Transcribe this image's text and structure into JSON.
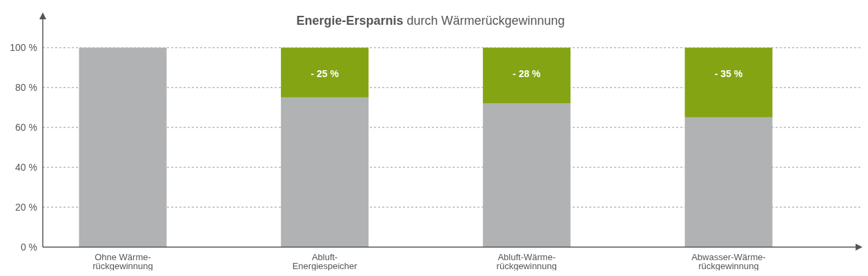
{
  "chart_data": {
    "type": "bar",
    "title": "Energie-Ersparnis durch Wärmerückgewinnung",
    "stacked": true,
    "categories": [
      "Ohne Wärme-\nrückgewinnung",
      "Abluft-\nEnergiespeicher",
      "Abluft-Wärme-\nrückgewinnung",
      "Abwasser-Wärme-\nrückgewinnung"
    ],
    "series": [
      {
        "color": "#b1b2b4",
        "values": [
          100,
          75,
          72,
          65
        ]
      },
      {
        "color": "#84a414",
        "values": [
          null,
          25,
          28,
          35
        ]
      }
    ],
    "annotations": [
      {
        "text": "- 25 %",
        "x": "Abluft-\nEnergiespeicher",
        "y": 100
      },
      {
        "text": "- 28 %",
        "x": "Abluft-Wärme-\nrückgewinnung",
        "y": 100
      },
      {
        "text": "- 35 %",
        "x": "Abwasser-Wärme-\nrückgewinnung",
        "y": 100
      }
    ],
    "ylim": [
      0,
      117
    ],
    "yticks": [
      {
        "value": 0,
        "label": "0 %"
      },
      {
        "value": 20,
        "label": "20 %"
      },
      {
        "value": 40,
        "label": "40 %"
      },
      {
        "value": 60,
        "label": "60 %"
      },
      {
        "value": 80,
        "label": "80 %"
      },
      {
        "value": 100,
        "label": "100 %"
      }
    ],
    "grid": "y"
  }
}
